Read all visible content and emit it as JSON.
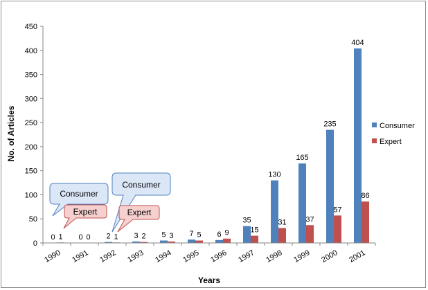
{
  "chart_data": {
    "type": "bar",
    "title": "",
    "xlabel": "Years",
    "ylabel": "No. of Articles",
    "ylim": [
      0,
      450
    ],
    "yticks": [
      0,
      50,
      100,
      150,
      200,
      250,
      300,
      350,
      400,
      450
    ],
    "grid": false,
    "legend_position": "right",
    "categories": [
      "1990",
      "1991",
      "1992",
      "1993",
      "1994",
      "1995",
      "1996",
      "1997",
      "1998",
      "1999",
      "2000",
      "2001"
    ],
    "series": [
      {
        "name": "Consumer",
        "color": "#4f81bd",
        "values": [
          0,
          0,
          2,
          3,
          5,
          7,
          6,
          35,
          130,
          165,
          235,
          404
        ]
      },
      {
        "name": "Expert",
        "color": "#c0504d",
        "values": [
          1,
          0,
          1,
          2,
          3,
          5,
          9,
          15,
          31,
          37,
          57,
          86
        ]
      }
    ],
    "annotations": [
      {
        "text": "Consumer",
        "kind": "callout",
        "color": "#4f81bd"
      },
      {
        "text": "Expert",
        "kind": "callout",
        "color": "#c0504d"
      },
      {
        "text": "Consumer",
        "kind": "callout",
        "color": "#4f81bd"
      },
      {
        "text": "Expert",
        "kind": "callout",
        "color": "#c0504d"
      }
    ]
  }
}
